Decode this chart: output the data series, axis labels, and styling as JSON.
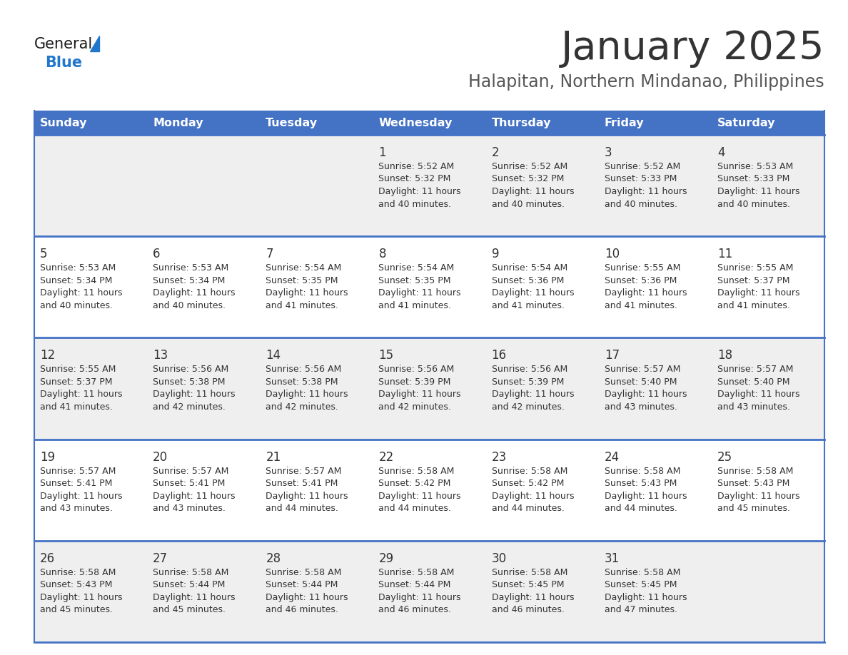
{
  "title": "January 2025",
  "subtitle": "Halapitan, Northern Mindanao, Philippines",
  "days_of_week": [
    "Sunday",
    "Monday",
    "Tuesday",
    "Wednesday",
    "Thursday",
    "Friday",
    "Saturday"
  ],
  "header_bg": "#4472C4",
  "header_text": "#FFFFFF",
  "row_bg_odd": "#EFEFEF",
  "row_bg_even": "#FFFFFF",
  "cell_border": "#4472C4",
  "day_num_color": "#333333",
  "info_color": "#333333",
  "title_color": "#333333",
  "subtitle_color": "#555555",
  "logo_general_color": "#1a1a1a",
  "logo_blue_color": "#2277CC",
  "weeks": [
    [
      {
        "day": "",
        "sunrise": "",
        "sunset": "",
        "daylight_hrs": "",
        "daylight_min": ""
      },
      {
        "day": "",
        "sunrise": "",
        "sunset": "",
        "daylight_hrs": "",
        "daylight_min": ""
      },
      {
        "day": "",
        "sunrise": "",
        "sunset": "",
        "daylight_hrs": "",
        "daylight_min": ""
      },
      {
        "day": "1",
        "sunrise": "5:52 AM",
        "sunset": "5:32 PM",
        "daylight_hrs": "11 hours",
        "daylight_min": "40 minutes."
      },
      {
        "day": "2",
        "sunrise": "5:52 AM",
        "sunset": "5:32 PM",
        "daylight_hrs": "11 hours",
        "daylight_min": "40 minutes."
      },
      {
        "day": "3",
        "sunrise": "5:52 AM",
        "sunset": "5:33 PM",
        "daylight_hrs": "11 hours",
        "daylight_min": "40 minutes."
      },
      {
        "day": "4",
        "sunrise": "5:53 AM",
        "sunset": "5:33 PM",
        "daylight_hrs": "11 hours",
        "daylight_min": "40 minutes."
      }
    ],
    [
      {
        "day": "5",
        "sunrise": "5:53 AM",
        "sunset": "5:34 PM",
        "daylight_hrs": "11 hours",
        "daylight_min": "40 minutes."
      },
      {
        "day": "6",
        "sunrise": "5:53 AM",
        "sunset": "5:34 PM",
        "daylight_hrs": "11 hours",
        "daylight_min": "40 minutes."
      },
      {
        "day": "7",
        "sunrise": "5:54 AM",
        "sunset": "5:35 PM",
        "daylight_hrs": "11 hours",
        "daylight_min": "41 minutes."
      },
      {
        "day": "8",
        "sunrise": "5:54 AM",
        "sunset": "5:35 PM",
        "daylight_hrs": "11 hours",
        "daylight_min": "41 minutes."
      },
      {
        "day": "9",
        "sunrise": "5:54 AM",
        "sunset": "5:36 PM",
        "daylight_hrs": "11 hours",
        "daylight_min": "41 minutes."
      },
      {
        "day": "10",
        "sunrise": "5:55 AM",
        "sunset": "5:36 PM",
        "daylight_hrs": "11 hours",
        "daylight_min": "41 minutes."
      },
      {
        "day": "11",
        "sunrise": "5:55 AM",
        "sunset": "5:37 PM",
        "daylight_hrs": "11 hours",
        "daylight_min": "41 minutes."
      }
    ],
    [
      {
        "day": "12",
        "sunrise": "5:55 AM",
        "sunset": "5:37 PM",
        "daylight_hrs": "11 hours",
        "daylight_min": "41 minutes."
      },
      {
        "day": "13",
        "sunrise": "5:56 AM",
        "sunset": "5:38 PM",
        "daylight_hrs": "11 hours",
        "daylight_min": "42 minutes."
      },
      {
        "day": "14",
        "sunrise": "5:56 AM",
        "sunset": "5:38 PM",
        "daylight_hrs": "11 hours",
        "daylight_min": "42 minutes."
      },
      {
        "day": "15",
        "sunrise": "5:56 AM",
        "sunset": "5:39 PM",
        "daylight_hrs": "11 hours",
        "daylight_min": "42 minutes."
      },
      {
        "day": "16",
        "sunrise": "5:56 AM",
        "sunset": "5:39 PM",
        "daylight_hrs": "11 hours",
        "daylight_min": "42 minutes."
      },
      {
        "day": "17",
        "sunrise": "5:57 AM",
        "sunset": "5:40 PM",
        "daylight_hrs": "11 hours",
        "daylight_min": "43 minutes."
      },
      {
        "day": "18",
        "sunrise": "5:57 AM",
        "sunset": "5:40 PM",
        "daylight_hrs": "11 hours",
        "daylight_min": "43 minutes."
      }
    ],
    [
      {
        "day": "19",
        "sunrise": "5:57 AM",
        "sunset": "5:41 PM",
        "daylight_hrs": "11 hours",
        "daylight_min": "43 minutes."
      },
      {
        "day": "20",
        "sunrise": "5:57 AM",
        "sunset": "5:41 PM",
        "daylight_hrs": "11 hours",
        "daylight_min": "43 minutes."
      },
      {
        "day": "21",
        "sunrise": "5:57 AM",
        "sunset": "5:41 PM",
        "daylight_hrs": "11 hours",
        "daylight_min": "44 minutes."
      },
      {
        "day": "22",
        "sunrise": "5:58 AM",
        "sunset": "5:42 PM",
        "daylight_hrs": "11 hours",
        "daylight_min": "44 minutes."
      },
      {
        "day": "23",
        "sunrise": "5:58 AM",
        "sunset": "5:42 PM",
        "daylight_hrs": "11 hours",
        "daylight_min": "44 minutes."
      },
      {
        "day": "24",
        "sunrise": "5:58 AM",
        "sunset": "5:43 PM",
        "daylight_hrs": "11 hours",
        "daylight_min": "44 minutes."
      },
      {
        "day": "25",
        "sunrise": "5:58 AM",
        "sunset": "5:43 PM",
        "daylight_hrs": "11 hours",
        "daylight_min": "45 minutes."
      }
    ],
    [
      {
        "day": "26",
        "sunrise": "5:58 AM",
        "sunset": "5:43 PM",
        "daylight_hrs": "11 hours",
        "daylight_min": "45 minutes."
      },
      {
        "day": "27",
        "sunrise": "5:58 AM",
        "sunset": "5:44 PM",
        "daylight_hrs": "11 hours",
        "daylight_min": "45 minutes."
      },
      {
        "day": "28",
        "sunrise": "5:58 AM",
        "sunset": "5:44 PM",
        "daylight_hrs": "11 hours",
        "daylight_min": "46 minutes."
      },
      {
        "day": "29",
        "sunrise": "5:58 AM",
        "sunset": "5:44 PM",
        "daylight_hrs": "11 hours",
        "daylight_min": "46 minutes."
      },
      {
        "day": "30",
        "sunrise": "5:58 AM",
        "sunset": "5:45 PM",
        "daylight_hrs": "11 hours",
        "daylight_min": "46 minutes."
      },
      {
        "day": "31",
        "sunrise": "5:58 AM",
        "sunset": "5:45 PM",
        "daylight_hrs": "11 hours",
        "daylight_min": "47 minutes."
      },
      {
        "day": "",
        "sunrise": "",
        "sunset": "",
        "daylight_hrs": "",
        "daylight_min": ""
      }
    ]
  ]
}
